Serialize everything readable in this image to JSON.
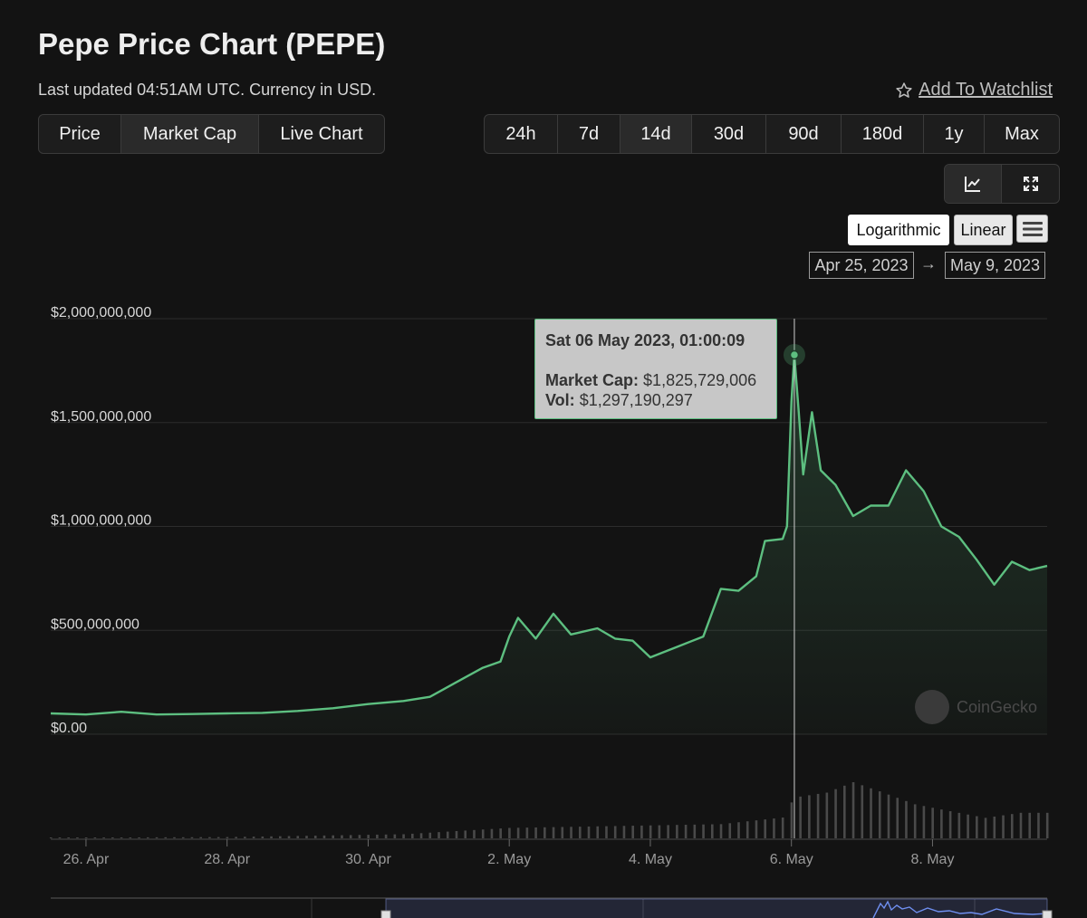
{
  "header": {
    "title": "Pepe Price Chart (PEPE)",
    "subtitle": "Last updated 04:51AM UTC. Currency in USD.",
    "watchlist_label": "Add To Watchlist"
  },
  "chart_types": [
    {
      "label": "Price",
      "active": false
    },
    {
      "label": "Market Cap",
      "active": true
    },
    {
      "label": "Live Chart",
      "active": false
    }
  ],
  "ranges": [
    {
      "label": "24h",
      "active": false
    },
    {
      "label": "7d",
      "active": false
    },
    {
      "label": "14d",
      "active": true
    },
    {
      "label": "30d",
      "active": false
    },
    {
      "label": "90d",
      "active": false
    },
    {
      "label": "180d",
      "active": false
    },
    {
      "label": "1y",
      "active": false
    },
    {
      "label": "Max",
      "active": false
    }
  ],
  "tools": {
    "line_icon": "line-chart-icon",
    "expand_icon": "expand-icon"
  },
  "scale": {
    "log_label": "Logarithmic",
    "linear_label": "Linear",
    "selected": "Linear",
    "menu_icon": "hamburger-menu-icon"
  },
  "date_range": {
    "from": "Apr 25, 2023",
    "to": "May 9, 2023",
    "arrow": "→"
  },
  "tooltip": {
    "date": "Sat 06 May 2023, 01:00:09",
    "market_cap_label": "Market Cap:",
    "market_cap_value": "$1,825,729,006",
    "volume_label": "Vol:",
    "volume_value": "$1,297,190,297"
  },
  "watermark": "CoinGecko",
  "colors": {
    "line": "#5dbf80",
    "volume_bar": "#4a4a4a",
    "grid": "#2c2c2c",
    "background": "#131313"
  },
  "chart_data": {
    "type": "area",
    "title": "Pepe Price Chart (PEPE)",
    "series": [
      {
        "name": "Market Cap",
        "x": [
          "2023-04-25 12:00",
          "2023-04-26 00:00",
          "2023-04-26 12:00",
          "2023-04-27 00:00",
          "2023-04-27 12:00",
          "2023-04-28 00:00",
          "2023-04-28 12:00",
          "2023-04-29 00:00",
          "2023-04-29 12:00",
          "2023-04-30 00:00",
          "2023-04-30 12:00",
          "2023-04-30 21:00",
          "2023-05-01 06:00",
          "2023-05-01 15:00",
          "2023-05-01 21:00",
          "2023-05-02 00:00",
          "2023-05-02 03:00",
          "2023-05-02 09:00",
          "2023-05-02 15:00",
          "2023-05-02 21:00",
          "2023-05-03 06:00",
          "2023-05-03 12:00",
          "2023-05-03 18:00",
          "2023-05-04 00:00",
          "2023-05-04 09:00",
          "2023-05-04 18:00",
          "2023-05-05 00:00",
          "2023-05-05 06:00",
          "2023-05-05 12:00",
          "2023-05-05 15:00",
          "2023-05-05 21:00",
          "2023-05-05 22:30",
          "2023-05-06 00:00",
          "2023-05-06 01:00",
          "2023-05-06 02:30",
          "2023-05-06 04:00",
          "2023-05-06 07:00",
          "2023-05-06 10:00",
          "2023-05-06 15:00",
          "2023-05-06 21:00",
          "2023-05-07 03:00",
          "2023-05-07 09:00",
          "2023-05-07 15:00",
          "2023-05-07 21:00",
          "2023-05-08 03:00",
          "2023-05-08 09:00",
          "2023-05-08 15:00",
          "2023-05-08 21:00",
          "2023-05-09 03:00",
          "2023-05-09 06:00",
          "2023-05-09 09:00",
          "2023-05-09 15:00"
        ],
        "values": [
          100000000,
          95000000,
          108000000,
          95000000,
          97000000,
          100000000,
          103000000,
          112000000,
          125000000,
          145000000,
          160000000,
          180000000,
          250000000,
          320000000,
          350000000,
          470000000,
          560000000,
          460000000,
          580000000,
          480000000,
          510000000,
          460000000,
          450000000,
          370000000,
          420000000,
          470000000,
          700000000,
          690000000,
          760000000,
          930000000,
          940000000,
          1000000000,
          1600000000,
          1825729006,
          1550000000,
          1250000000,
          1550000000,
          1270000000,
          1200000000,
          1050000000,
          1100000000,
          1100000000,
          1270000000,
          1170000000,
          1000000000,
          950000000,
          840000000,
          720000000,
          830000000,
          810000000,
          790000000,
          810000000
        ]
      },
      {
        "name": "Vol",
        "x": [
          "2023-04-25 12:00",
          "2023-04-28 00:00",
          "2023-04-30 12:00",
          "2023-05-02 00:00",
          "2023-05-03 12:00",
          "2023-05-05 00:00",
          "2023-05-05 21:00",
          "2023-05-06 01:00",
          "2023-05-06 12:00",
          "2023-05-06 21:00",
          "2023-05-07 06:00",
          "2023-05-07 18:00",
          "2023-05-08 06:00",
          "2023-05-08 18:00",
          "2023-05-09 06:00",
          "2023-05-09 15:00"
        ],
        "values": [
          20000000,
          40000000,
          130000000,
          330000000,
          390000000,
          450000000,
          660000000,
          1297190297,
          1450000000,
          1780000000,
          1490000000,
          1080000000,
          860000000,
          650000000,
          810000000,
          810000000
        ]
      }
    ],
    "y_ticks": [
      "$2,000,000,000",
      "$1,500,000,000",
      "$1,000,000,000",
      "$500,000,000",
      "$0.00"
    ],
    "x_ticks": [
      "26. Apr",
      "28. Apr",
      "30. Apr",
      "2. May",
      "4. May",
      "6. May",
      "8. May"
    ],
    "ylim": [
      0,
      2000000000
    ],
    "xlim": [
      "2023-04-25 12:00",
      "2023-05-09 15:00"
    ],
    "grid": true,
    "scale": "linear"
  }
}
